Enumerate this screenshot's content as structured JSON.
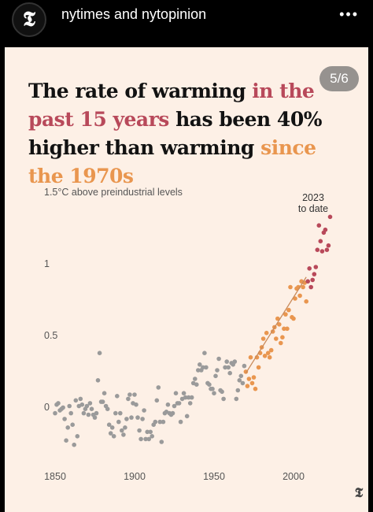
{
  "post": {
    "account": "nytimes and nytopinion",
    "avatar_glyph": "𝕿",
    "more_icon": "•••",
    "counter": "5/6"
  },
  "headline": {
    "part1": "The rate of warming ",
    "part2": "in the past 15 years",
    "part3": " has been 40% higher than warming ",
    "part4": "since the 1970s"
  },
  "colors": {
    "background": "#fdf0e6",
    "pre1970": "#9a9a9a",
    "since1970": "#e9964f",
    "recent15": "#b8495a",
    "trend": "#c98a5a"
  },
  "chart_data": {
    "type": "scatter",
    "title": "",
    "ylabel": "1.5°C above preindustrial levels",
    "xlim": [
      1842,
      2030
    ],
    "ylim": [
      -0.35,
      1.58
    ],
    "xticks": [
      1850,
      1900,
      1950,
      2000
    ],
    "yticks": [
      0,
      0.5,
      1,
      1.5
    ],
    "ytick_labels": [
      "0",
      "0.5",
      "1",
      "1.5°C above preindustrial levels"
    ],
    "annotation": [
      "2023",
      "to date"
    ],
    "series": [
      {
        "color": "#9a9a9a",
        "points": [
          [
            1850,
            -0.02
          ],
          [
            1851,
            0.04
          ],
          [
            1852,
            0.05
          ],
          [
            1853,
            0.0
          ],
          [
            1854,
            0.01
          ],
          [
            1855,
            0.02
          ],
          [
            1856,
            -0.06
          ],
          [
            1857,
            -0.21
          ],
          [
            1858,
            -0.12
          ],
          [
            1859,
            0.03
          ],
          [
            1860,
            -0.02
          ],
          [
            1861,
            -0.1
          ],
          [
            1862,
            -0.24
          ],
          [
            1863,
            0.07
          ],
          [
            1864,
            -0.18
          ],
          [
            1865,
            0.03
          ],
          [
            1866,
            0.08
          ],
          [
            1867,
            0.04
          ],
          [
            1868,
            -0.02
          ],
          [
            1869,
            0.01
          ],
          [
            1870,
            0.03
          ],
          [
            1871,
            -0.03
          ],
          [
            1872,
            0.05
          ],
          [
            1873,
            0.01
          ],
          [
            1874,
            -0.03
          ],
          [
            1875,
            -0.05
          ],
          [
            1876,
            -0.02
          ],
          [
            1877,
            0.21
          ],
          [
            1878,
            0.4
          ],
          [
            1879,
            0.06
          ],
          [
            1880,
            0.06
          ],
          [
            1881,
            0.12
          ],
          [
            1882,
            0.03
          ],
          [
            1883,
            0.01
          ],
          [
            1884,
            -0.1
          ],
          [
            1885,
            -0.16
          ],
          [
            1886,
            -0.12
          ],
          [
            1887,
            -0.18
          ],
          [
            1888,
            -0.02
          ],
          [
            1889,
            0.1
          ],
          [
            1890,
            -0.08
          ],
          [
            1891,
            -0.02
          ],
          [
            1892,
            -0.14
          ],
          [
            1893,
            -0.17
          ],
          [
            1894,
            -0.12
          ],
          [
            1895,
            -0.06
          ],
          [
            1896,
            0.08
          ],
          [
            1897,
            0.11
          ],
          [
            1898,
            -0.05
          ],
          [
            1899,
            0.05
          ],
          [
            1900,
            0.11
          ],
          [
            1901,
            0.04
          ],
          [
            1902,
            -0.05
          ],
          [
            1903,
            -0.14
          ],
          [
            1904,
            -0.2
          ],
          [
            1905,
            -0.06
          ],
          [
            1906,
            0.0
          ],
          [
            1907,
            -0.2
          ],
          [
            1908,
            -0.15
          ],
          [
            1909,
            -0.2
          ],
          [
            1910,
            -0.15
          ],
          [
            1911,
            -0.18
          ],
          [
            1912,
            -0.1
          ],
          [
            1913,
            -0.08
          ],
          [
            1914,
            0.07
          ],
          [
            1915,
            0.16
          ],
          [
            1916,
            -0.08
          ],
          [
            1917,
            -0.22
          ],
          [
            1918,
            -0.08
          ],
          [
            1919,
            -0.02
          ],
          [
            1920,
            -0.01
          ],
          [
            1921,
            0.04
          ],
          [
            1922,
            -0.02
          ],
          [
            1923,
            -0.03
          ],
          [
            1924,
            -0.02
          ],
          [
            1925,
            0.03
          ],
          [
            1926,
            0.12
          ],
          [
            1927,
            0.05
          ],
          [
            1928,
            0.05
          ],
          [
            1929,
            -0.08
          ],
          [
            1930,
            0.08
          ],
          [
            1931,
            0.12
          ],
          [
            1932,
            0.09
          ],
          [
            1933,
            -0.04
          ],
          [
            1934,
            0.09
          ],
          [
            1935,
            0.05
          ],
          [
            1936,
            0.09
          ],
          [
            1937,
            0.19
          ],
          [
            1938,
            0.22
          ],
          [
            1939,
            0.18
          ],
          [
            1940,
            0.28
          ],
          [
            1941,
            0.32
          ],
          [
            1942,
            0.28
          ],
          [
            1943,
            0.3
          ],
          [
            1944,
            0.4
          ],
          [
            1945,
            0.3
          ],
          [
            1946,
            0.19
          ],
          [
            1947,
            0.18
          ],
          [
            1948,
            0.15
          ],
          [
            1949,
            0.15
          ],
          [
            1950,
            0.12
          ],
          [
            1951,
            0.24
          ],
          [
            1952,
            0.28
          ],
          [
            1953,
            0.36
          ],
          [
            1954,
            0.14
          ],
          [
            1955,
            0.13
          ],
          [
            1956,
            0.08
          ],
          [
            1957,
            0.3
          ],
          [
            1958,
            0.34
          ],
          [
            1959,
            0.3
          ],
          [
            1960,
            0.26
          ],
          [
            1961,
            0.33
          ],
          [
            1962,
            0.32
          ],
          [
            1963,
            0.34
          ],
          [
            1964,
            0.08
          ],
          [
            1965,
            0.14
          ],
          [
            1966,
            0.21
          ],
          [
            1967,
            0.24
          ],
          [
            1968,
            0.19
          ],
          [
            1969,
            0.31
          ]
        ]
      },
      {
        "color": "#e9964f",
        "points": [
          [
            1970,
            0.27
          ],
          [
            1971,
            0.17
          ],
          [
            1972,
            0.22
          ],
          [
            1973,
            0.37
          ],
          [
            1974,
            0.19
          ],
          [
            1975,
            0.23
          ],
          [
            1976,
            0.15
          ],
          [
            1977,
            0.37
          ],
          [
            1978,
            0.3
          ],
          [
            1979,
            0.4
          ],
          [
            1980,
            0.44
          ],
          [
            1981,
            0.5
          ],
          [
            1982,
            0.38
          ],
          [
            1983,
            0.54
          ],
          [
            1984,
            0.4
          ],
          [
            1985,
            0.37
          ],
          [
            1986,
            0.42
          ],
          [
            1987,
            0.55
          ],
          [
            1988,
            0.58
          ],
          [
            1989,
            0.5
          ],
          [
            1990,
            0.64
          ],
          [
            1991,
            0.6
          ],
          [
            1992,
            0.47
          ],
          [
            1993,
            0.51
          ],
          [
            1994,
            0.57
          ],
          [
            1995,
            0.67
          ],
          [
            1996,
            0.57
          ],
          [
            1997,
            0.7
          ],
          [
            1998,
            0.86
          ],
          [
            1999,
            0.65
          ],
          [
            2000,
            0.64
          ],
          [
            2001,
            0.78
          ],
          [
            2002,
            0.85
          ],
          [
            2003,
            0.86
          ],
          [
            2004,
            0.8
          ],
          [
            2005,
            0.9
          ],
          [
            2006,
            0.86
          ],
          [
            2007,
            0.89
          ],
          [
            2008,
            0.76
          ]
        ]
      },
      {
        "color": "#b8495a",
        "points": [
          [
            2009,
            0.9
          ],
          [
            2010,
            0.99
          ],
          [
            2011,
            0.86
          ],
          [
            2012,
            0.91
          ],
          [
            2013,
            0.95
          ],
          [
            2014,
            1.0
          ],
          [
            2015,
            1.12
          ],
          [
            2016,
            1.29
          ],
          [
            2017,
            1.18
          ],
          [
            2018,
            1.11
          ],
          [
            2019,
            1.24
          ],
          [
            2020,
            1.26
          ],
          [
            2021,
            1.12
          ],
          [
            2022,
            1.15
          ],
          [
            2023,
            1.35
          ]
        ]
      }
    ],
    "trend": {
      "x": [
        1970,
        2008
      ],
      "y": [
        0.26,
        0.93
      ]
    }
  }
}
